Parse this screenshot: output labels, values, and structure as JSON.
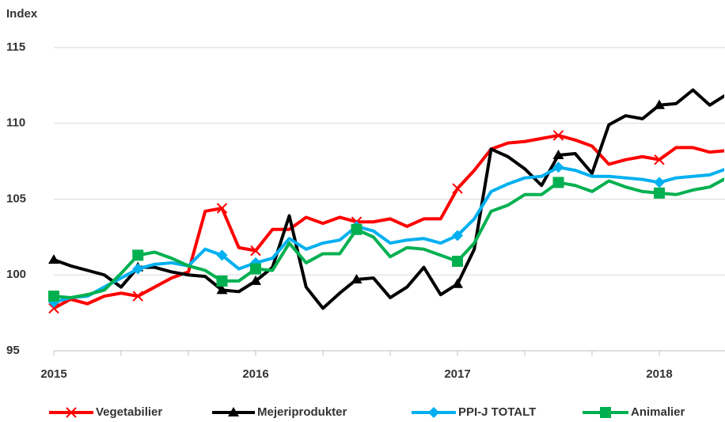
{
  "chart_data": {
    "type": "line",
    "y_label": "Index",
    "categories": [
      "2015",
      null,
      null,
      null,
      null,
      null,
      null,
      null,
      null,
      null,
      null,
      null,
      "2016",
      null,
      null,
      null,
      null,
      null,
      null,
      null,
      null,
      null,
      null,
      null,
      "2017",
      null,
      null,
      null,
      null,
      null,
      null,
      null,
      null,
      null,
      null,
      null,
      "2018",
      null,
      null,
      null,
      null
    ],
    "ylim": [
      95,
      115
    ],
    "yticks": [
      95,
      100,
      105,
      110,
      115
    ],
    "grid": true,
    "legend": "bottom",
    "series": [
      {
        "name": "Vegetabilier",
        "color": "#ff0000",
        "marker": "x",
        "values": [
          97.8,
          98.4,
          98.1,
          98.6,
          98.8,
          98.6,
          99.2,
          99.8,
          100.2,
          104.2,
          104.4,
          101.8,
          101.6,
          103.0,
          103.0,
          103.8,
          103.4,
          103.8,
          103.5,
          103.5,
          103.7,
          103.2,
          103.7,
          103.7,
          105.7,
          106.9,
          108.3,
          108.7,
          108.8,
          109.0,
          109.2,
          108.9,
          108.5,
          107.3,
          107.6,
          107.8,
          107.6,
          108.4,
          108.4,
          108.1,
          108.2
        ]
      },
      {
        "name": "Mejeriprodukter",
        "color": "#000000",
        "marker": "triangle",
        "values": [
          101.0,
          100.6,
          100.3,
          100.0,
          99.2,
          100.5,
          100.5,
          100.2,
          100.0,
          99.9,
          99.0,
          98.9,
          99.6,
          100.5,
          103.9,
          99.2,
          97.8,
          98.8,
          99.7,
          99.8,
          98.5,
          99.2,
          100.5,
          98.7,
          99.4,
          101.7,
          108.3,
          107.8,
          107.0,
          105.9,
          107.9,
          108.0,
          106.7,
          109.9,
          110.5,
          110.3,
          111.2,
          111.3,
          112.2,
          111.2,
          111.9
        ]
      },
      {
        "name": "PPI-J TOTALT",
        "color": "#00b0f0",
        "marker": "diamond",
        "values": [
          98.2,
          98.5,
          98.6,
          99.2,
          99.8,
          100.4,
          100.7,
          100.8,
          100.6,
          101.7,
          101.3,
          100.4,
          100.8,
          101.1,
          102.4,
          101.7,
          102.1,
          102.3,
          103.2,
          102.9,
          102.1,
          102.3,
          102.4,
          102.1,
          102.6,
          103.7,
          105.5,
          106.0,
          106.4,
          106.5,
          107.1,
          106.9,
          106.5,
          106.5,
          106.4,
          106.3,
          106.1,
          106.4,
          106.5,
          106.6,
          107.0
        ]
      },
      {
        "name": "Animalier",
        "color": "#00b050",
        "marker": "square",
        "values": [
          98.6,
          98.5,
          98.7,
          99.0,
          100.1,
          101.3,
          101.5,
          101.1,
          100.6,
          100.3,
          99.6,
          99.6,
          100.4,
          100.3,
          102.1,
          100.8,
          101.4,
          101.4,
          103.0,
          102.5,
          101.2,
          101.8,
          101.7,
          101.3,
          100.9,
          102.1,
          104.2,
          104.6,
          105.3,
          105.3,
          106.1,
          105.9,
          105.5,
          106.2,
          105.8,
          105.5,
          105.4,
          105.3,
          105.6,
          105.8,
          106.4
        ]
      }
    ]
  }
}
